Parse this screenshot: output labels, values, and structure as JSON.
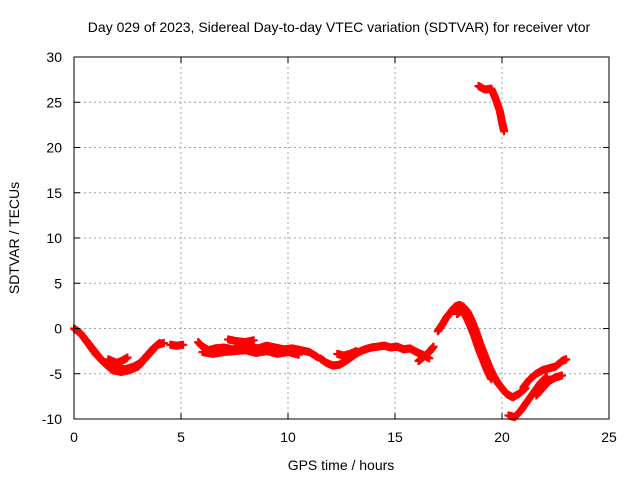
{
  "chart_data": {
    "type": "scatter",
    "title": "Day 029 of 2023, Sidereal Day-to-day VTEC variation (SDTVAR) for receiver vtor",
    "xlabel": "GPS time / hours",
    "ylabel": "SDTVAR / TECUs",
    "xlim": [
      0,
      25
    ],
    "ylim": [
      -10,
      30
    ],
    "xticks": [
      0,
      5,
      10,
      15,
      20,
      25
    ],
    "yticks": [
      -10,
      -5,
      0,
      5,
      10,
      15,
      20,
      25,
      30
    ],
    "grid": true,
    "marker_color": "#ff0000",
    "series": [
      {
        "name": "SDTVAR",
        "segments": [
          [
            [
              0.0,
              0.0
            ],
            [
              0.3,
              -0.5
            ],
            [
              0.6,
              -1.5
            ],
            [
              1.0,
              -2.8
            ],
            [
              1.4,
              -3.8
            ],
            [
              1.8,
              -4.6
            ],
            [
              2.2,
              -4.8
            ],
            [
              2.6,
              -4.6
            ],
            [
              3.0,
              -4.2
            ],
            [
              3.3,
              -3.4
            ],
            [
              3.6,
              -2.6
            ],
            [
              3.9,
              -1.8
            ],
            [
              4.2,
              -1.6
            ]
          ],
          [
            [
              0.4,
              -0.8
            ],
            [
              0.8,
              -2.0
            ],
            [
              1.2,
              -3.2
            ],
            [
              1.6,
              -4.2
            ],
            [
              2.0,
              -4.4
            ],
            [
              2.4,
              -4.5
            ],
            [
              2.8,
              -4.2
            ],
            [
              3.1,
              -3.8
            ],
            [
              3.4,
              -3.0
            ],
            [
              3.7,
              -2.2
            ],
            [
              4.0,
              -1.6
            ]
          ],
          [
            [
              1.6,
              -3.4
            ],
            [
              2.0,
              -3.8
            ],
            [
              2.3,
              -3.5
            ],
            [
              2.5,
              -3.2
            ]
          ],
          [
            [
              4.5,
              -1.8
            ],
            [
              4.8,
              -1.9
            ],
            [
              5.1,
              -1.8
            ]
          ],
          [
            [
              5.8,
              -1.5
            ],
            [
              6.0,
              -2.0
            ],
            [
              6.3,
              -2.4
            ],
            [
              6.6,
              -2.2
            ],
            [
              7.0,
              -2.1
            ],
            [
              7.4,
              -2.3
            ],
            [
              7.8,
              -2.2
            ],
            [
              8.2,
              -2.0
            ],
            [
              8.6,
              -2.2
            ],
            [
              9.0,
              -1.9
            ],
            [
              9.4,
              -2.1
            ],
            [
              9.8,
              -2.3
            ],
            [
              10.2,
              -2.2
            ],
            [
              10.6,
              -2.4
            ],
            [
              11.0,
              -2.6
            ],
            [
              11.4,
              -3.2
            ]
          ],
          [
            [
              6.0,
              -2.6
            ],
            [
              6.5,
              -2.8
            ],
            [
              7.0,
              -2.6
            ],
            [
              7.5,
              -2.5
            ],
            [
              8.0,
              -2.4
            ],
            [
              8.5,
              -2.7
            ],
            [
              9.0,
              -2.5
            ],
            [
              9.5,
              -2.8
            ],
            [
              10.0,
              -2.6
            ],
            [
              10.5,
              -2.9
            ]
          ],
          [
            [
              7.2,
              -1.2
            ],
            [
              7.6,
              -1.4
            ],
            [
              8.0,
              -1.5
            ],
            [
              8.4,
              -1.3
            ]
          ],
          [
            [
              11.5,
              -3.3
            ],
            [
              11.8,
              -3.8
            ],
            [
              12.1,
              -4.1
            ],
            [
              12.4,
              -4.0
            ],
            [
              12.7,
              -3.6
            ],
            [
              13.0,
              -3.1
            ],
            [
              13.3,
              -2.6
            ],
            [
              13.6,
              -2.3
            ],
            [
              13.9,
              -2.1
            ],
            [
              14.2,
              -2.0
            ],
            [
              14.5,
              -1.9
            ],
            [
              14.8,
              -2.1
            ],
            [
              15.1,
              -2.0
            ],
            [
              15.4,
              -2.3
            ],
            [
              15.7,
              -2.2
            ],
            [
              16.0,
              -2.6
            ],
            [
              16.3,
              -2.9
            ],
            [
              16.6,
              -3.3
            ]
          ],
          [
            [
              12.3,
              -2.8
            ],
            [
              12.6,
              -3.0
            ],
            [
              12.9,
              -2.8
            ],
            [
              13.2,
              -2.5
            ]
          ],
          [
            [
              16.1,
              -3.6
            ],
            [
              16.3,
              -3.2
            ],
            [
              16.6,
              -2.6
            ],
            [
              16.8,
              -2.0
            ]
          ],
          [
            [
              17.0,
              -0.3
            ],
            [
              17.2,
              0.4
            ],
            [
              17.4,
              1.2
            ],
            [
              17.6,
              1.8
            ],
            [
              17.8,
              2.4
            ],
            [
              18.0,
              2.6
            ],
            [
              18.2,
              2.4
            ],
            [
              18.4,
              1.8
            ],
            [
              18.6,
              0.8
            ],
            [
              18.8,
              -0.4
            ],
            [
              19.0,
              -1.8
            ],
            [
              19.2,
              -3.0
            ],
            [
              19.4,
              -4.2
            ],
            [
              19.6,
              -5.2
            ],
            [
              19.8,
              -6.0
            ],
            [
              20.0,
              -6.6
            ],
            [
              20.2,
              -7.2
            ],
            [
              20.5,
              -7.6
            ],
            [
              20.8,
              -7.2
            ],
            [
              21.1,
              -6.6
            ]
          ],
          [
            [
              17.9,
              1.6
            ],
            [
              18.1,
              2.0
            ],
            [
              18.3,
              1.4
            ],
            [
              18.5,
              0.4
            ],
            [
              18.7,
              -0.8
            ],
            [
              18.9,
              -2.2
            ],
            [
              19.1,
              -3.4
            ],
            [
              19.3,
              -4.6
            ],
            [
              19.5,
              -5.6
            ]
          ],
          [
            [
              20.3,
              -9.6
            ],
            [
              20.6,
              -9.8
            ],
            [
              20.9,
              -9.0
            ],
            [
              21.2,
              -8.0
            ],
            [
              21.5,
              -7.0
            ],
            [
              21.8,
              -6.0
            ],
            [
              22.1,
              -5.3
            ]
          ],
          [
            [
              21.0,
              -6.5
            ],
            [
              21.3,
              -5.6
            ],
            [
              21.6,
              -5.0
            ],
            [
              21.9,
              -4.6
            ],
            [
              22.2,
              -4.4
            ],
            [
              22.5,
              -4.2
            ],
            [
              22.8,
              -3.6
            ],
            [
              23.0,
              -3.4
            ]
          ],
          [
            [
              21.6,
              -7.4
            ],
            [
              21.9,
              -6.6
            ],
            [
              22.2,
              -5.8
            ],
            [
              22.5,
              -5.4
            ],
            [
              22.8,
              -5.2
            ]
          ],
          [
            [
              18.9,
              26.8
            ],
            [
              19.2,
              26.4
            ],
            [
              19.5,
              26.5
            ],
            [
              19.7,
              25.4
            ],
            [
              19.9,
              24.0
            ],
            [
              20.0,
              22.8
            ],
            [
              20.1,
              21.8
            ]
          ]
        ]
      }
    ]
  }
}
